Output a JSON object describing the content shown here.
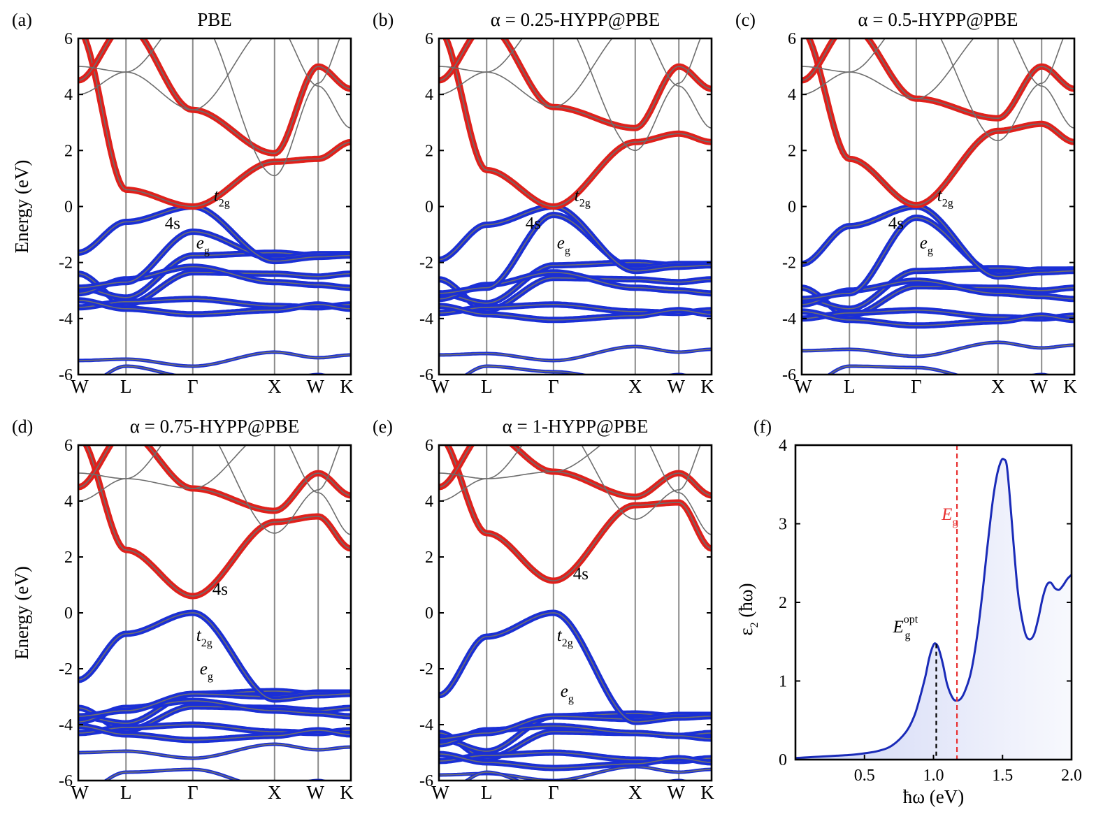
{
  "colors": {
    "conduction": "#e0201b",
    "valence": "#1a2fd6",
    "backbone": "#6e6e6e",
    "vline": "#8a8a8a",
    "eps": "#1a2bb8",
    "eg_line": "#e83030",
    "eopt_line": "#000000"
  },
  "band_panels": [
    {
      "letter": "(a)",
      "title": "PBE",
      "y_label": "Energy (eV)",
      "yticks": [
        "6",
        "4",
        "2",
        "0",
        "-2",
        "-4",
        "-6"
      ],
      "kpoints": [
        "W",
        "L",
        "Γ",
        "X",
        "W",
        "K"
      ],
      "labels": {
        "s": "4s",
        "t2g": "t",
        "t2g_sub": "2g",
        "eg": "e",
        "eg_sub": "g"
      },
      "gap": 0.0,
      "cb_l": 0.6,
      "cb_x": 1.9,
      "cb_top": 3.45,
      "vb_l": -0.55,
      "vb_w": -1.65,
      "eg_top": -0.9,
      "band_lo": -2.4,
      "band_hi": -1.75,
      "dband_lo": -3.6,
      "dband_hi": -2.9,
      "low": -5.5
    },
    {
      "letter": "(b)",
      "title": "α = 0.25-HYPP@PBE",
      "y_label": "",
      "yticks": [
        "6",
        "4",
        "2",
        "0",
        "-2",
        "-4",
        "-6"
      ],
      "kpoints": [
        "W",
        "L",
        "Γ",
        "X",
        "W",
        "K"
      ],
      "labels": {
        "s": "4s",
        "t2g": "t",
        "t2g_sub": "2g",
        "eg": "e",
        "eg_sub": "g"
      },
      "gap": 0.0,
      "cb_l": 1.3,
      "cb_x": 2.8,
      "cb_top": 3.55,
      "vb_l": -0.65,
      "vb_w": -1.9,
      "eg_top": -0.3,
      "band_lo": -2.6,
      "band_hi": -2.1,
      "dband_lo": -3.8,
      "dband_hi": -3.1,
      "low": -5.3
    },
    {
      "letter": "(c)",
      "title": "α = 0.5-HYPP@PBE",
      "y_label": "",
      "yticks": [
        "6",
        "4",
        "2",
        "0",
        "-2",
        "-4",
        "-6"
      ],
      "kpoints": [
        "W",
        "L",
        "Γ",
        "X",
        "W",
        "K"
      ],
      "labels": {
        "s": "4s",
        "t2g": "t",
        "t2g_sub": "2g",
        "eg": "e",
        "eg_sub": "g"
      },
      "gap": 0.05,
      "cb_l": 1.7,
      "cb_x": 3.15,
      "cb_top": 3.85,
      "vb_l": -0.7,
      "vb_w": -2.05,
      "eg_top": -0.4,
      "band_lo": -2.9,
      "band_hi": -2.3,
      "dband_lo": -4.0,
      "dband_hi": -3.3,
      "low": -5.15
    },
    {
      "letter": "(d)",
      "title": "α = 0.75-HYPP@PBE",
      "y_label": "Energy (eV)",
      "yticks": [
        "6",
        "4",
        "2",
        "0",
        "-2",
        "-4",
        "-6"
      ],
      "kpoints": [
        "W",
        "L",
        "Γ",
        "X",
        "W",
        "K"
      ],
      "labels": {
        "s": "4s",
        "t2g": "t",
        "t2g_sub": "2g",
        "eg": "e",
        "eg_sub": "g"
      },
      "gap": 0.6,
      "cb_l": 2.25,
      "cb_x": 3.65,
      "cb_top": 4.45,
      "vb_l": -0.75,
      "vb_w": -2.4,
      "eg_top": -2.9,
      "band_lo": -3.4,
      "band_hi": -2.9,
      "dband_lo": -4.3,
      "dband_hi": -3.7,
      "low": -5.0
    },
    {
      "letter": "(e)",
      "title": "α = 1-HYPP@PBE",
      "y_label": "",
      "yticks": [
        "6",
        "4",
        "2",
        "0",
        "-2",
        "-4",
        "-6"
      ],
      "kpoints": [
        "W",
        "L",
        "Γ",
        "X",
        "W",
        "K"
      ],
      "labels": {
        "s": "4s",
        "t2g": "t",
        "t2g_sub": "2g",
        "eg": "e",
        "eg_sub": "g"
      },
      "gap": 1.15,
      "cb_l": 2.85,
      "cb_x": 4.15,
      "cb_top": 5.05,
      "vb_l": -0.85,
      "vb_w": -2.95,
      "eg_top": -3.7,
      "band_lo": -4.3,
      "band_hi": -3.7,
      "dband_lo": -5.3,
      "dband_hi": -4.5,
      "low": -5.8
    }
  ],
  "chart_data": {
    "type": "area",
    "letter": "(f)",
    "title": "",
    "xlabel": "ħω (eV)",
    "ylabel": "ε",
    "ylabel_sub": "2",
    "ylabel_tail": " (ħω)",
    "xlim": [
      0,
      2.0
    ],
    "ylim": [
      0,
      4
    ],
    "xticks": [
      "0.5",
      "1.0",
      "1.5",
      "2.0"
    ],
    "xtick_values": [
      0.5,
      1.0,
      1.5,
      2.0
    ],
    "yticks": [
      "0",
      "1",
      "2",
      "3",
      "4"
    ],
    "ytick_values": [
      0,
      1,
      2,
      3,
      4
    ],
    "series": [
      {
        "name": "ε2",
        "x": [
          0.0,
          0.1,
          0.2,
          0.3,
          0.4,
          0.5,
          0.6,
          0.7,
          0.8,
          0.86,
          0.9,
          0.94,
          0.97,
          1.0,
          1.02,
          1.04,
          1.07,
          1.1,
          1.14,
          1.17,
          1.2,
          1.23,
          1.27,
          1.31,
          1.35,
          1.39,
          1.43,
          1.46,
          1.49,
          1.51,
          1.53,
          1.55,
          1.58,
          1.61,
          1.64,
          1.67,
          1.7,
          1.73,
          1.76,
          1.79,
          1.82,
          1.85,
          1.88,
          1.91,
          1.94,
          1.97,
          2.0
        ],
        "values": [
          0.02,
          0.03,
          0.04,
          0.05,
          0.06,
          0.08,
          0.11,
          0.18,
          0.35,
          0.55,
          0.78,
          1.05,
          1.3,
          1.46,
          1.47,
          1.4,
          1.2,
          0.95,
          0.78,
          0.75,
          0.78,
          0.88,
          1.1,
          1.5,
          2.05,
          2.7,
          3.3,
          3.62,
          3.8,
          3.82,
          3.75,
          3.4,
          2.75,
          2.15,
          1.8,
          1.58,
          1.53,
          1.6,
          1.8,
          2.05,
          2.22,
          2.25,
          2.18,
          2.16,
          2.22,
          2.3,
          2.35
        ]
      }
    ],
    "annotations": {
      "eg_label": "E",
      "eg_sub": "g",
      "eg_x": 1.17,
      "eopt_label": "E",
      "eopt_sub": "g",
      "eopt_sup": "opt",
      "eopt_x": 1.02,
      "eopt_y": 1.47
    }
  }
}
